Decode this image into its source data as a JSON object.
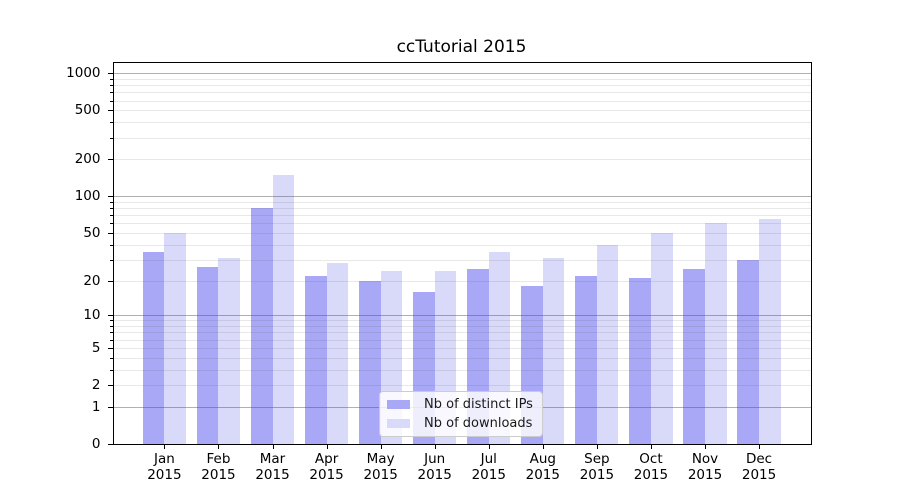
{
  "title": "ccTutorial 2015",
  "legend": {
    "items": [
      {
        "key": "distinct-ips",
        "label": "Nb of distinct IPs",
        "color": "#a8a8f6"
      },
      {
        "key": "downloads",
        "label": "Nb of downloads",
        "color": "#d9d9fa"
      }
    ]
  },
  "axes": {
    "y_tick_labels": [
      "0",
      "1",
      "2",
      "5",
      "10",
      "20",
      "50",
      "100",
      "200",
      "500",
      "1000"
    ],
    "x_tick_year": "2015",
    "x_tick_months": [
      "Jan",
      "Feb",
      "Mar",
      "Apr",
      "May",
      "Jun",
      "Jul",
      "Aug",
      "Sep",
      "Oct",
      "Nov",
      "Dec"
    ]
  },
  "chart_data": {
    "type": "bar",
    "title": "ccTutorial 2015",
    "categories": [
      "Jan 2015",
      "Feb 2015",
      "Mar 2015",
      "Apr 2015",
      "May 2015",
      "Jun 2015",
      "Jul 2015",
      "Aug 2015",
      "Sep 2015",
      "Oct 2015",
      "Nov 2015",
      "Dec 2015"
    ],
    "series": [
      {
        "name": "Nb of distinct IPs",
        "color": "#a8a8f6",
        "values": [
          35,
          26,
          80,
          22,
          20,
          16,
          25,
          18,
          22,
          21,
          25,
          30
        ]
      },
      {
        "name": "Nb of downloads",
        "color": "#d9d9fa",
        "values": [
          50,
          31,
          150,
          28,
          24,
          24,
          35,
          31,
          40,
          50,
          60,
          65
        ]
      }
    ],
    "xlabel": "",
    "ylabel": "",
    "yscale": "symlog-like (position proportional to ln(1+value))",
    "ylim": [
      0,
      1236
    ],
    "yticks": [
      0,
      1,
      2,
      5,
      10,
      20,
      50,
      100,
      200,
      500,
      1000
    ],
    "major_gridlines": [
      1,
      10,
      100,
      1000
    ],
    "minor_gridlines": [
      2,
      3,
      4,
      5,
      6,
      7,
      8,
      9,
      20,
      30,
      40,
      50,
      60,
      70,
      80,
      90,
      200,
      300,
      400,
      500,
      600,
      700,
      800,
      900
    ],
    "grid": "on",
    "legend_position": "lower center"
  },
  "colors": {
    "background": "#ffffff",
    "bar_distinct_ips": "#a8a8f6",
    "bar_downloads": "#d9d9fa",
    "major_gridline": "#b0b0b0",
    "minor_gridline": "#eaeaea",
    "axis": "#000000"
  }
}
